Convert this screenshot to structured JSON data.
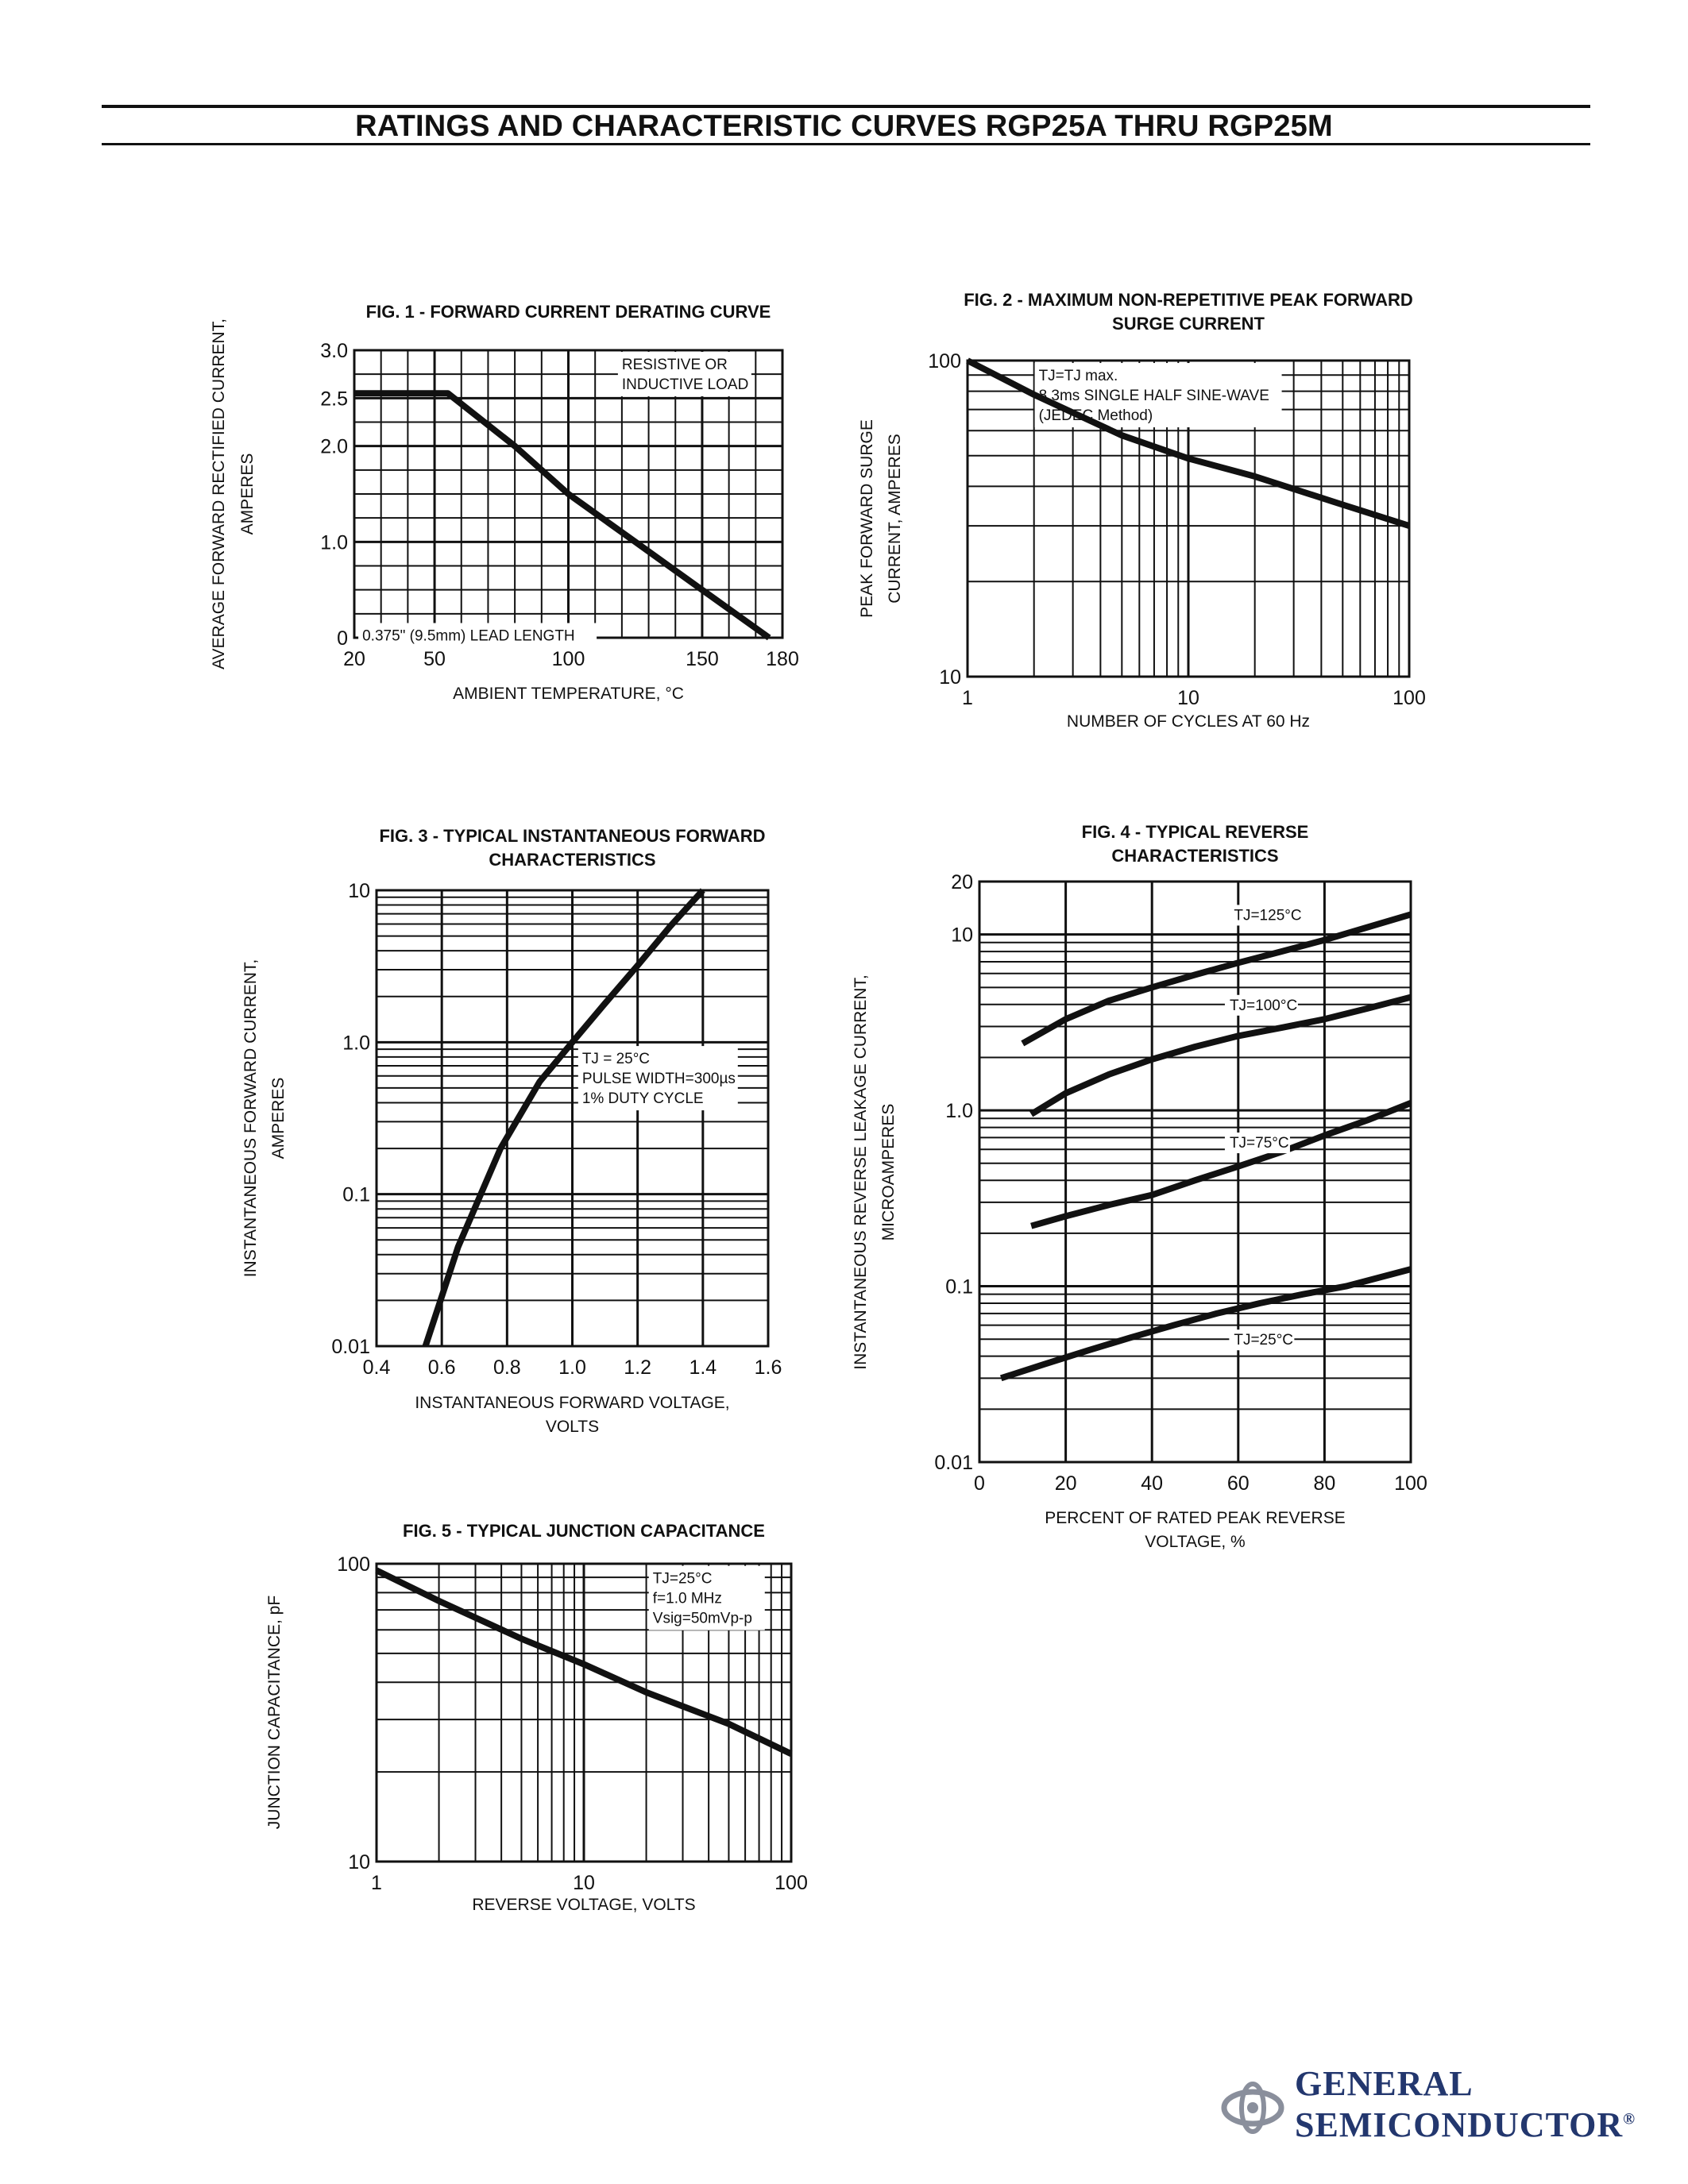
{
  "page": {
    "title": "RATINGS AND CHARACTERISTIC CURVES RGP25A THRU RGP25M",
    "logo_line1": "GENERAL",
    "logo_line2": "SEMICONDUCTOR",
    "logo_mark": "®",
    "brand_color": "#23376e"
  },
  "chart_data": [
    {
      "id": "fig1",
      "type": "line",
      "title": "FIG. 1 - FORWARD CURRENT DERATING CURVE",
      "xlabel": "AMBIENT TEMPERATURE, °C",
      "ylabel": [
        "AVERAGE FORWARD RECTIFIED CURRENT,",
        "AMPERES"
      ],
      "xscale": "linear",
      "yscale": "linear",
      "xlim": [
        20,
        180
      ],
      "ylim": [
        0,
        3.0
      ],
      "xticks": [
        20,
        50,
        100,
        150,
        180
      ],
      "xtick_labels": [
        "20",
        "50",
        "100",
        "150",
        "180"
      ],
      "yticks": [
        0,
        1.0,
        2.0,
        2.5,
        3.0
      ],
      "ytick_labels": [
        "0",
        "1.0",
        "2.0",
        "2.5",
        "3.0"
      ],
      "grid": true,
      "annotations": [
        {
          "lines": [
            "RESISTIVE OR",
            "INDUCTIVE LOAD"
          ],
          "x": 120,
          "y": 2.95
        },
        {
          "lines": [
            "0.375\" (9.5mm) LEAD LENGTH"
          ],
          "x": 23,
          "y": 0.12
        }
      ],
      "series": [
        {
          "x": [
            20,
            55,
            80,
            100,
            125,
            150,
            175
          ],
          "y": [
            2.55,
            2.55,
            2.0,
            1.5,
            1.0,
            0.5,
            0.0
          ]
        }
      ]
    },
    {
      "id": "fig2",
      "type": "line",
      "title": [
        "FIG. 2 - MAXIMUM NON-REPETITIVE PEAK FORWARD",
        "SURGE CURRENT"
      ],
      "xlabel": "NUMBER OF CYCLES AT 60 Hz",
      "ylabel": [
        "PEAK FORWARD SURGE",
        "CURRENT, AMPERES"
      ],
      "xscale": "log",
      "yscale": "log",
      "xlim": [
        1,
        100
      ],
      "ylim": [
        10,
        100
      ],
      "xticks": [
        1,
        10,
        100
      ],
      "xtick_labels": [
        "1",
        "10",
        "100"
      ],
      "yticks": [
        10,
        100
      ],
      "ytick_labels": [
        "10",
        "100"
      ],
      "grid": true,
      "annotations": [
        {
          "lines": [
            "TJ=TJ max.",
            "8.3ms SINGLE HALF SINE-WAVE",
            "(JEDEC Method)"
          ],
          "x": 2.1,
          "y": 96
        }
      ],
      "series": [
        {
          "x": [
            1,
            2,
            5,
            10,
            20,
            50,
            100
          ],
          "y": [
            100,
            78,
            58,
            49,
            43,
            35,
            30
          ]
        }
      ]
    },
    {
      "id": "fig3",
      "type": "line",
      "title": [
        "FIG. 3 - TYPICAL INSTANTANEOUS FORWARD",
        "CHARACTERISTICS"
      ],
      "xlabel": [
        "INSTANTANEOUS FORWARD VOLTAGE,",
        "VOLTS"
      ],
      "ylabel": [
        "INSTANTANEOUS FORWARD CURRENT,",
        "AMPERES"
      ],
      "xscale": "linear",
      "yscale": "log",
      "xlim": [
        0.4,
        1.6
      ],
      "ylim": [
        0.01,
        10
      ],
      "xticks": [
        0.4,
        0.6,
        0.8,
        1.0,
        1.2,
        1.4,
        1.6
      ],
      "xtick_labels": [
        "0.4",
        "0.6",
        "0.8",
        "1.0",
        "1.2",
        "1.4",
        "1.6"
      ],
      "yticks": [
        0.01,
        0.1,
        1.0,
        10
      ],
      "ytick_labels": [
        "0.01",
        "0.1",
        "1.0",
        "10"
      ],
      "grid": true,
      "annotations": [
        {
          "lines": [
            "TJ = 25°C",
            "PULSE WIDTH=300µs",
            "1% DUTY CYCLE"
          ],
          "x": 1.03,
          "y": 0.9
        }
      ],
      "series": [
        {
          "x": [
            0.55,
            0.65,
            0.78,
            0.9,
            1.0,
            1.1,
            1.2,
            1.3,
            1.4
          ],
          "y": [
            0.01,
            0.045,
            0.2,
            0.55,
            1.0,
            1.8,
            3.2,
            5.8,
            10.0
          ]
        }
      ]
    },
    {
      "id": "fig4",
      "type": "line",
      "title": [
        "FIG. 4 - TYPICAL REVERSE",
        "CHARACTERISTICS"
      ],
      "xlabel": [
        "PERCENT OF RATED PEAK REVERSE",
        "VOLTAGE, %"
      ],
      "ylabel": [
        "INSTANTANEOUS REVERSE LEAKAGE CURRENT,",
        "MICROAMPERES"
      ],
      "xscale": "linear",
      "yscale": "log",
      "xlim": [
        0,
        100
      ],
      "ylim": [
        0.01,
        20
      ],
      "xticks": [
        0,
        20,
        40,
        60,
        80,
        100
      ],
      "xtick_labels": [
        "0",
        "20",
        "40",
        "60",
        "80",
        "100"
      ],
      "yticks": [
        0.01,
        0.1,
        1.0,
        10,
        20
      ],
      "ytick_labels": [
        "0.01",
        "0.1",
        "1.0",
        "10",
        "20"
      ],
      "grid": true,
      "series": [
        {
          "name": "TJ=125°C",
          "label_at": [
            59,
            13.0
          ],
          "x": [
            10,
            20,
            30,
            40,
            50,
            60,
            70,
            80,
            90,
            100
          ],
          "y": [
            2.4,
            3.3,
            4.2,
            5.0,
            5.9,
            6.9,
            8.0,
            9.3,
            11.0,
            13.0
          ]
        },
        {
          "name": "TJ=100°C",
          "label_at": [
            58,
            4.0
          ],
          "x": [
            12,
            20,
            30,
            40,
            50,
            60,
            70,
            80,
            90,
            100
          ],
          "y": [
            0.95,
            1.25,
            1.6,
            1.95,
            2.3,
            2.65,
            2.95,
            3.3,
            3.8,
            4.4
          ]
        },
        {
          "name": "TJ=75°C",
          "label_at": [
            58,
            0.66
          ],
          "x": [
            12,
            20,
            30,
            40,
            50,
            60,
            70,
            80,
            90,
            100
          ],
          "y": [
            0.22,
            0.25,
            0.29,
            0.33,
            0.4,
            0.48,
            0.58,
            0.72,
            0.88,
            1.1
          ]
        },
        {
          "name": "TJ=25°C",
          "label_at": [
            59,
            0.05
          ],
          "x": [
            5,
            15,
            25,
            35,
            45,
            55,
            65,
            75,
            85,
            100
          ],
          "y": [
            0.03,
            0.036,
            0.043,
            0.051,
            0.06,
            0.07,
            0.08,
            0.09,
            0.1,
            0.125
          ]
        }
      ]
    },
    {
      "id": "fig5",
      "type": "line",
      "title": "FIG. 5 - TYPICAL JUNCTION CAPACITANCE",
      "xlabel": "REVERSE VOLTAGE, VOLTS",
      "ylabel": [
        "JUNCTION CAPACITANCE, pF"
      ],
      "xscale": "log",
      "yscale": "log",
      "xlim": [
        1,
        100
      ],
      "ylim": [
        10,
        100
      ],
      "xticks": [
        1,
        10,
        100
      ],
      "xtick_labels": [
        "1",
        "10",
        "100"
      ],
      "yticks": [
        10,
        100
      ],
      "ytick_labels": [
        "10",
        "100"
      ],
      "grid": true,
      "annotations": [
        {
          "lines": [
            "TJ=25°C",
            "f=1.0 MHz",
            "Vsig=50mVp-p"
          ],
          "x": 21.5,
          "y": 96
        }
      ],
      "series": [
        {
          "x": [
            1,
            2,
            5,
            10,
            20,
            50,
            100
          ],
          "y": [
            95,
            75,
            56,
            46,
            37,
            29,
            23
          ]
        }
      ]
    }
  ]
}
